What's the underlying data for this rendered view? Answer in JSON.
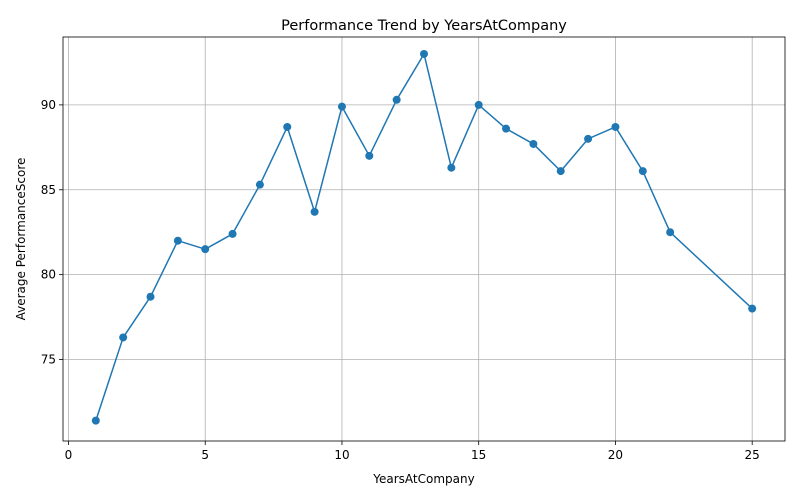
{
  "chart_data": {
    "type": "line",
    "title": "Performance Trend by YearsAtCompany",
    "xlabel": "YearsAtCompany",
    "ylabel": "Average PerformanceScore",
    "xlim": [
      -0.2,
      26.2
    ],
    "ylim": [
      70.2,
      94.0
    ],
    "xticks": [
      0,
      5,
      10,
      15,
      20,
      25
    ],
    "yticks": [
      75,
      80,
      85,
      90
    ],
    "grid": true,
    "line_color": "#1f77b4",
    "marker": "circle",
    "series": [
      {
        "x": [
          1,
          2,
          3,
          4,
          5,
          6,
          7,
          8,
          9,
          10,
          11,
          12,
          13,
          14,
          15,
          16,
          17,
          18,
          19,
          20,
          21,
          22,
          25
        ],
        "y": [
          71.4,
          76.3,
          78.7,
          82.0,
          81.5,
          82.4,
          85.3,
          88.7,
          83.7,
          89.9,
          87.0,
          90.3,
          93.0,
          86.3,
          90.0,
          88.6,
          87.7,
          86.1,
          88.0,
          88.7,
          86.1,
          82.5,
          78.0
        ]
      }
    ]
  }
}
